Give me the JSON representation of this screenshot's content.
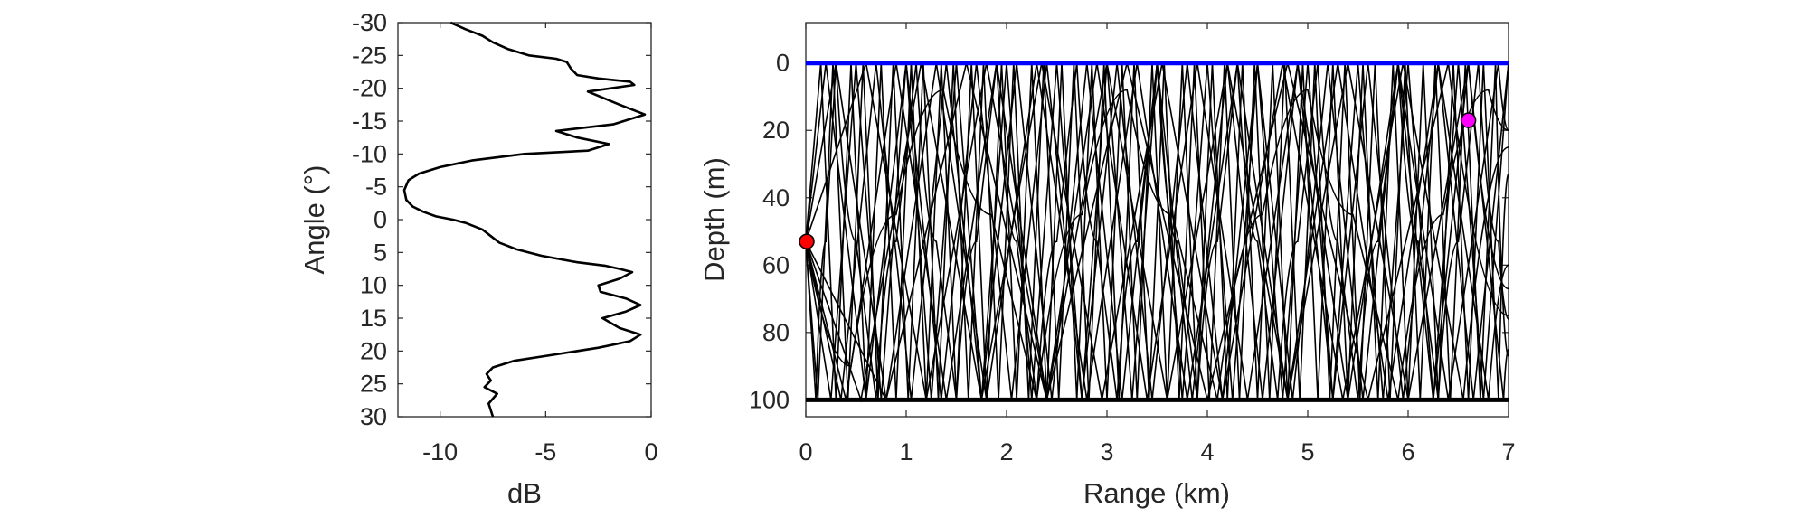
{
  "chart_data": [
    {
      "type": "line",
      "xlabel": "dB",
      "ylabel": "Angle (°)",
      "xlim": [
        -12,
        0
      ],
      "ylim": [
        -30,
        30
      ],
      "y_reversed": true,
      "xticks": [
        -10,
        -5,
        0
      ],
      "yticks": [
        -30,
        -25,
        -20,
        -15,
        -10,
        -5,
        0,
        5,
        10,
        15,
        20,
        25,
        30
      ],
      "series_color": "#000000",
      "series": [
        {
          "x": [
            -9.5,
            -8.8,
            -8.0,
            -7.5,
            -6.8,
            -5.8,
            -4.5,
            -4.0,
            -3.8,
            -3.5,
            -2.5,
            -1.0,
            -0.8,
            -3.0,
            -1.5,
            -0.3,
            -1.8,
            -4.5,
            -3.5,
            -2.0,
            -3.0,
            -6.0,
            -8.5,
            -10.0,
            -11.0,
            -11.5,
            -11.7,
            -11.6,
            -11.3,
            -10.8,
            -10.2,
            -9.4,
            -8.8,
            -8.0,
            -7.6,
            -7.2,
            -6.4,
            -5.2,
            -3.5,
            -2.2,
            -1.5,
            -0.9,
            -1.5,
            -2.5,
            -2.4,
            -1.2,
            -0.5,
            -1.2,
            -2.3,
            -1.5,
            -0.5,
            -1.0,
            -2.5,
            -4.5,
            -6.5,
            -7.5,
            -7.8,
            -7.6,
            -7.9,
            -7.3,
            -7.7,
            -7.5
          ],
          "y": [
            -30,
            -29,
            -28,
            -27,
            -26,
            -25,
            -24.5,
            -24,
            -23,
            -22,
            -21.5,
            -21,
            -20.5,
            -19.5,
            -17.5,
            -16,
            -14.5,
            -13.5,
            -12.5,
            -11.5,
            -10.5,
            -10,
            -9,
            -8,
            -7,
            -6,
            -4.5,
            -3,
            -2,
            -1.2,
            -0.5,
            0,
            0.5,
            1.5,
            2.5,
            3.5,
            4.5,
            5.5,
            6.5,
            7,
            7.5,
            8,
            9,
            10,
            11,
            12,
            13,
            14,
            15,
            16.5,
            17.5,
            18.5,
            19.5,
            20.5,
            21.5,
            22.5,
            23.5,
            24.5,
            25.5,
            26.5,
            28,
            30
          ]
        }
      ]
    },
    {
      "type": "line",
      "xlabel": "Range (km)",
      "ylabel": "Depth (m)",
      "xlim": [
        0,
        7
      ],
      "ylim": [
        -12,
        105
      ],
      "y_reversed": true,
      "xticks": [
        0,
        1,
        2,
        3,
        4,
        5,
        6,
        7
      ],
      "yticks": [
        0,
        20,
        40,
        60,
        80,
        100
      ],
      "surface": {
        "depth": 0,
        "color": "#0000ff"
      },
      "bottom": {
        "depth": 100,
        "color": "#000000"
      },
      "source": {
        "range": 0,
        "depth": 53,
        "color": "#ff0000"
      },
      "receiver": {
        "range": 6.6,
        "depth": 17,
        "color": "#ff00ff"
      },
      "ray_color": "#000000",
      "rays": [
        {
          "x": [
            0,
            0.1,
            0.2,
            0.3,
            0.5,
            0.7,
            0.9,
            1.1,
            1.3,
            1.5,
            1.7,
            1.9,
            2.1,
            2.3,
            2.5,
            2.7,
            2.9,
            3.1,
            3.3,
            3.5,
            3.7,
            3.9,
            4.1,
            4.3,
            4.5,
            4.7,
            4.9,
            5.1,
            5.3,
            5.5,
            5.7,
            5.9,
            6.1,
            6.3,
            6.5,
            6.7,
            6.9,
            7.0
          ],
          "y": [
            53,
            100,
            53,
            0,
            53,
            100,
            53,
            0,
            53,
            100,
            53,
            0,
            53,
            100,
            53,
            0,
            53,
            100,
            53,
            0,
            53,
            100,
            53,
            0,
            53,
            100,
            53,
            0,
            53,
            100,
            53,
            0,
            53,
            100,
            53,
            0,
            53,
            76
          ]
        },
        {
          "x": [
            0,
            0.15,
            0.3,
            0.45,
            0.6,
            0.75,
            0.9,
            1.05,
            1.2,
            1.35,
            1.5,
            1.65,
            1.8,
            1.95,
            2.1,
            2.25,
            2.4,
            2.55,
            2.7,
            2.85,
            3.0,
            3.15,
            3.3,
            3.45,
            3.6,
            3.75,
            3.9,
            4.05,
            4.2,
            4.35,
            4.5,
            4.65,
            4.8,
            4.95,
            5.1,
            5.25,
            5.4,
            5.55,
            5.7,
            5.85,
            6.0,
            6.15,
            6.3,
            6.45,
            6.6,
            6.75,
            6.9,
            7.0
          ],
          "y": [
            53,
            0,
            100,
            0,
            100,
            0,
            100,
            0,
            100,
            0,
            100,
            0,
            100,
            0,
            100,
            0,
            100,
            0,
            100,
            0,
            100,
            0,
            100,
            0,
            100,
            0,
            100,
            0,
            100,
            0,
            100,
            0,
            100,
            0,
            100,
            0,
            100,
            0,
            100,
            0,
            100,
            0,
            100,
            0,
            100,
            0,
            100,
            33
          ]
        },
        {
          "x": [
            0,
            0.35,
            0.7,
            1.05,
            1.4,
            1.75,
            2.1,
            2.45,
            2.8,
            3.15,
            3.5,
            3.85,
            4.2,
            4.55,
            4.9,
            5.25,
            5.6,
            5.95,
            6.3,
            6.65,
            7.0
          ],
          "y": [
            53,
            100,
            0,
            100,
            0,
            100,
            0,
            100,
            0,
            100,
            0,
            100,
            0,
            100,
            0,
            100,
            0,
            100,
            0,
            100,
            0
          ]
        },
        {
          "x": [
            0,
            0.3,
            0.8,
            1.3,
            1.8,
            2.3,
            2.8,
            3.3,
            3.8,
            4.3,
            4.8,
            5.3,
            5.8,
            6.3,
            6.8,
            7.0
          ],
          "y": [
            53,
            0,
            100,
            0,
            100,
            0,
            100,
            0,
            100,
            0,
            100,
            0,
            100,
            0,
            100,
            60
          ]
        },
        {
          "x": [
            0,
            0.55,
            1.15,
            1.75,
            2.35,
            2.95,
            3.55,
            4.15,
            4.75,
            5.35,
            5.95,
            6.55,
            7.0
          ],
          "y": [
            53,
            100,
            0,
            100,
            0,
            100,
            0,
            100,
            0,
            100,
            0,
            100,
            25
          ]
        },
        {
          "x": [
            0,
            0.25,
            0.5,
            0.75,
            1.0,
            1.25,
            1.5,
            1.75,
            2.0,
            2.25,
            2.5,
            2.75,
            3.0,
            3.25,
            3.5,
            3.75,
            4.0,
            4.25,
            4.5,
            4.75,
            5.0,
            5.25,
            5.5,
            5.75,
            6.0,
            6.25,
            6.5,
            6.75,
            7.0
          ],
          "y": [
            53,
            100,
            0,
            100,
            0,
            100,
            0,
            100,
            0,
            100,
            0,
            100,
            0,
            100,
            0,
            100,
            0,
            100,
            0,
            100,
            0,
            100,
            0,
            100,
            0,
            100,
            0,
            100,
            0
          ]
        },
        {
          "x": [
            0,
            0.4,
            0.9,
            1.4,
            1.9,
            2.4,
            2.9,
            3.4,
            3.9,
            4.4,
            4.9,
            5.4,
            5.9,
            6.4,
            6.9,
            7.0
          ],
          "y": [
            53,
            100,
            0,
            100,
            0,
            100,
            0,
            100,
            0,
            100,
            0,
            100,
            0,
            100,
            0,
            20
          ]
        },
        {
          "x": [
            0,
            0.2,
            0.6,
            1.0,
            1.35,
            1.7,
            2.05,
            2.4,
            2.75,
            3.1,
            3.45,
            3.8,
            4.15,
            4.5,
            4.85,
            5.2,
            5.55,
            5.9,
            6.25,
            6.6,
            6.95,
            7.0
          ],
          "y": [
            53,
            0,
            100,
            0,
            100,
            0,
            100,
            0,
            100,
            0,
            100,
            0,
            100,
            0,
            100,
            0,
            100,
            0,
            100,
            0,
            100,
            85
          ]
        },
        {
          "x": [
            0,
            0.45,
            0.9,
            1.37,
            1.85,
            2.3,
            2.75,
            3.2,
            3.65,
            4.1,
            4.55,
            5.0,
            5.45,
            5.9,
            6.35,
            6.8,
            7.0
          ],
          "y": [
            53,
            90,
            45,
            8,
            45,
            100,
            45,
            8,
            45,
            100,
            45,
            8,
            45,
            100,
            45,
            8,
            20
          ]
        },
        {
          "x": [
            0,
            0.6,
            1.2,
            1.8,
            2.4,
            3.0,
            3.6,
            4.2,
            4.8,
            5.4,
            6.0,
            6.6,
            7.0
          ],
          "y": [
            53,
            0,
            100,
            0,
            100,
            0,
            100,
            0,
            100,
            0,
            100,
            0,
            67
          ]
        },
        {
          "x": [
            0,
            0.12,
            0.27,
            0.42,
            0.57,
            0.72,
            0.87,
            1.02,
            1.17,
            1.32,
            1.47,
            1.62,
            1.77,
            1.92,
            2.07,
            2.22,
            2.37,
            2.52,
            2.67,
            2.82,
            2.97,
            3.12,
            3.27,
            3.42,
            3.57,
            3.72,
            3.87,
            4.02,
            4.17,
            4.32,
            4.47,
            4.62,
            4.77,
            4.92,
            5.07,
            5.22,
            5.37,
            5.52,
            5.67,
            5.82,
            5.97,
            6.12,
            6.27,
            6.42,
            6.57,
            6.72,
            6.87,
            7.0
          ],
          "y": [
            53,
            100,
            0,
            100,
            0,
            100,
            0,
            100,
            0,
            100,
            0,
            100,
            0,
            100,
            0,
            100,
            0,
            100,
            0,
            100,
            0,
            100,
            0,
            100,
            0,
            100,
            0,
            100,
            0,
            100,
            0,
            100,
            0,
            100,
            0,
            100,
            0,
            100,
            0,
            100,
            0,
            100,
            0,
            100,
            0,
            100,
            0,
            87
          ]
        },
        {
          "x": [
            0,
            0.8,
            1.6,
            2.4,
            3.2,
            4.0,
            4.8,
            5.6,
            6.4,
            7.0
          ],
          "y": [
            53,
            100,
            0,
            100,
            0,
            100,
            0,
            100,
            0,
            75
          ]
        }
      ]
    }
  ]
}
